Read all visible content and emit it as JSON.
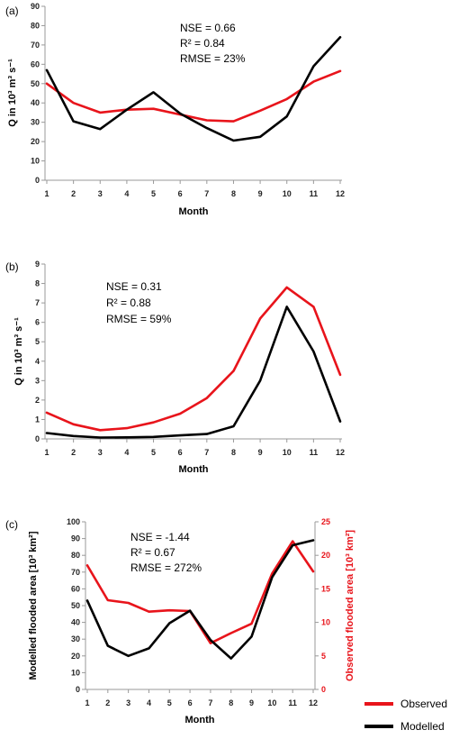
{
  "chart_data": [
    {
      "type": "line",
      "panel_label": "(a)",
      "xlabel": "Month",
      "ylabel": "Q in 10³ m³ s⁻¹",
      "x": [
        1,
        2,
        3,
        4,
        5,
        6,
        7,
        8,
        9,
        10,
        11,
        12
      ],
      "ylim": [
        0,
        90
      ],
      "yticks": [
        0,
        10,
        20,
        30,
        40,
        50,
        60,
        70,
        80,
        90
      ],
      "stats": [
        "NSE = 0.66",
        "R² = 0.84",
        "RMSE = 23%"
      ],
      "series": [
        {
          "name": "Observed",
          "color": "#e8141b",
          "values": [
            50,
            40,
            35,
            36.5,
            37,
            34,
            31,
            30.5,
            36,
            42,
            51,
            56.5
          ]
        },
        {
          "name": "Modelled",
          "color": "#000000",
          "values": [
            57,
            30.5,
            26.5,
            36.5,
            45.5,
            34.5,
            27,
            20.5,
            22.5,
            33,
            59,
            74
          ]
        }
      ]
    },
    {
      "type": "line",
      "panel_label": "(b)",
      "xlabel": "Month",
      "ylabel": "Q in 10³ m³ s⁻¹",
      "x": [
        1,
        2,
        3,
        4,
        5,
        6,
        7,
        8,
        9,
        10,
        11,
        12
      ],
      "ylim": [
        0,
        9
      ],
      "yticks": [
        0,
        1,
        2,
        3,
        4,
        5,
        6,
        7,
        8,
        9
      ],
      "stats": [
        "NSE = 0.31",
        "R² = 0.88",
        "RMSE = 59%"
      ],
      "series": [
        {
          "name": "Observed",
          "color": "#e8141b",
          "values": [
            1.35,
            0.75,
            0.45,
            0.55,
            0.85,
            1.3,
            2.1,
            3.5,
            6.2,
            7.8,
            6.8,
            3.3
          ]
        },
        {
          "name": "Modelled",
          "color": "#000000",
          "values": [
            0.3,
            0.15,
            0.07,
            0.08,
            0.1,
            0.18,
            0.25,
            0.65,
            3.0,
            6.8,
            4.5,
            0.9
          ]
        }
      ]
    },
    {
      "type": "line",
      "panel_label": "(c)",
      "xlabel": "Month",
      "ylabel": "Modelled flooded area [10³ km²]",
      "ylabel_right": "Observed flooded area [10³ km²]",
      "x": [
        1,
        2,
        3,
        4,
        5,
        6,
        7,
        8,
        9,
        10,
        11,
        12
      ],
      "ylim": [
        0,
        100
      ],
      "yticks": [
        0,
        10,
        20,
        30,
        40,
        50,
        60,
        70,
        80,
        90,
        100
      ],
      "ylim_right": [
        0,
        25
      ],
      "yticks_right": [
        0,
        5,
        10,
        15,
        20,
        25
      ],
      "stats": [
        "NSE = -1.44",
        "R² = 0.67",
        "RMSE = 272%"
      ],
      "series": [
        {
          "name": "Observed",
          "axis": "right",
          "color": "#e8141b",
          "values": [
            18.5,
            13.3,
            12.9,
            11.6,
            11.8,
            11.7,
            6.9,
            8.4,
            9.8,
            17.3,
            22.1,
            17.6
          ]
        },
        {
          "name": "Modelled",
          "axis": "left",
          "color": "#000000",
          "values": [
            53,
            26,
            20,
            24.5,
            39.5,
            47,
            29.5,
            18.5,
            31.5,
            67,
            86,
            89
          ]
        }
      ]
    }
  ],
  "legend": {
    "placement": "bottom-right",
    "items": [
      {
        "label": "Observed",
        "color": "#e8141b"
      },
      {
        "label": "Modelled",
        "color": "#000000"
      }
    ]
  }
}
